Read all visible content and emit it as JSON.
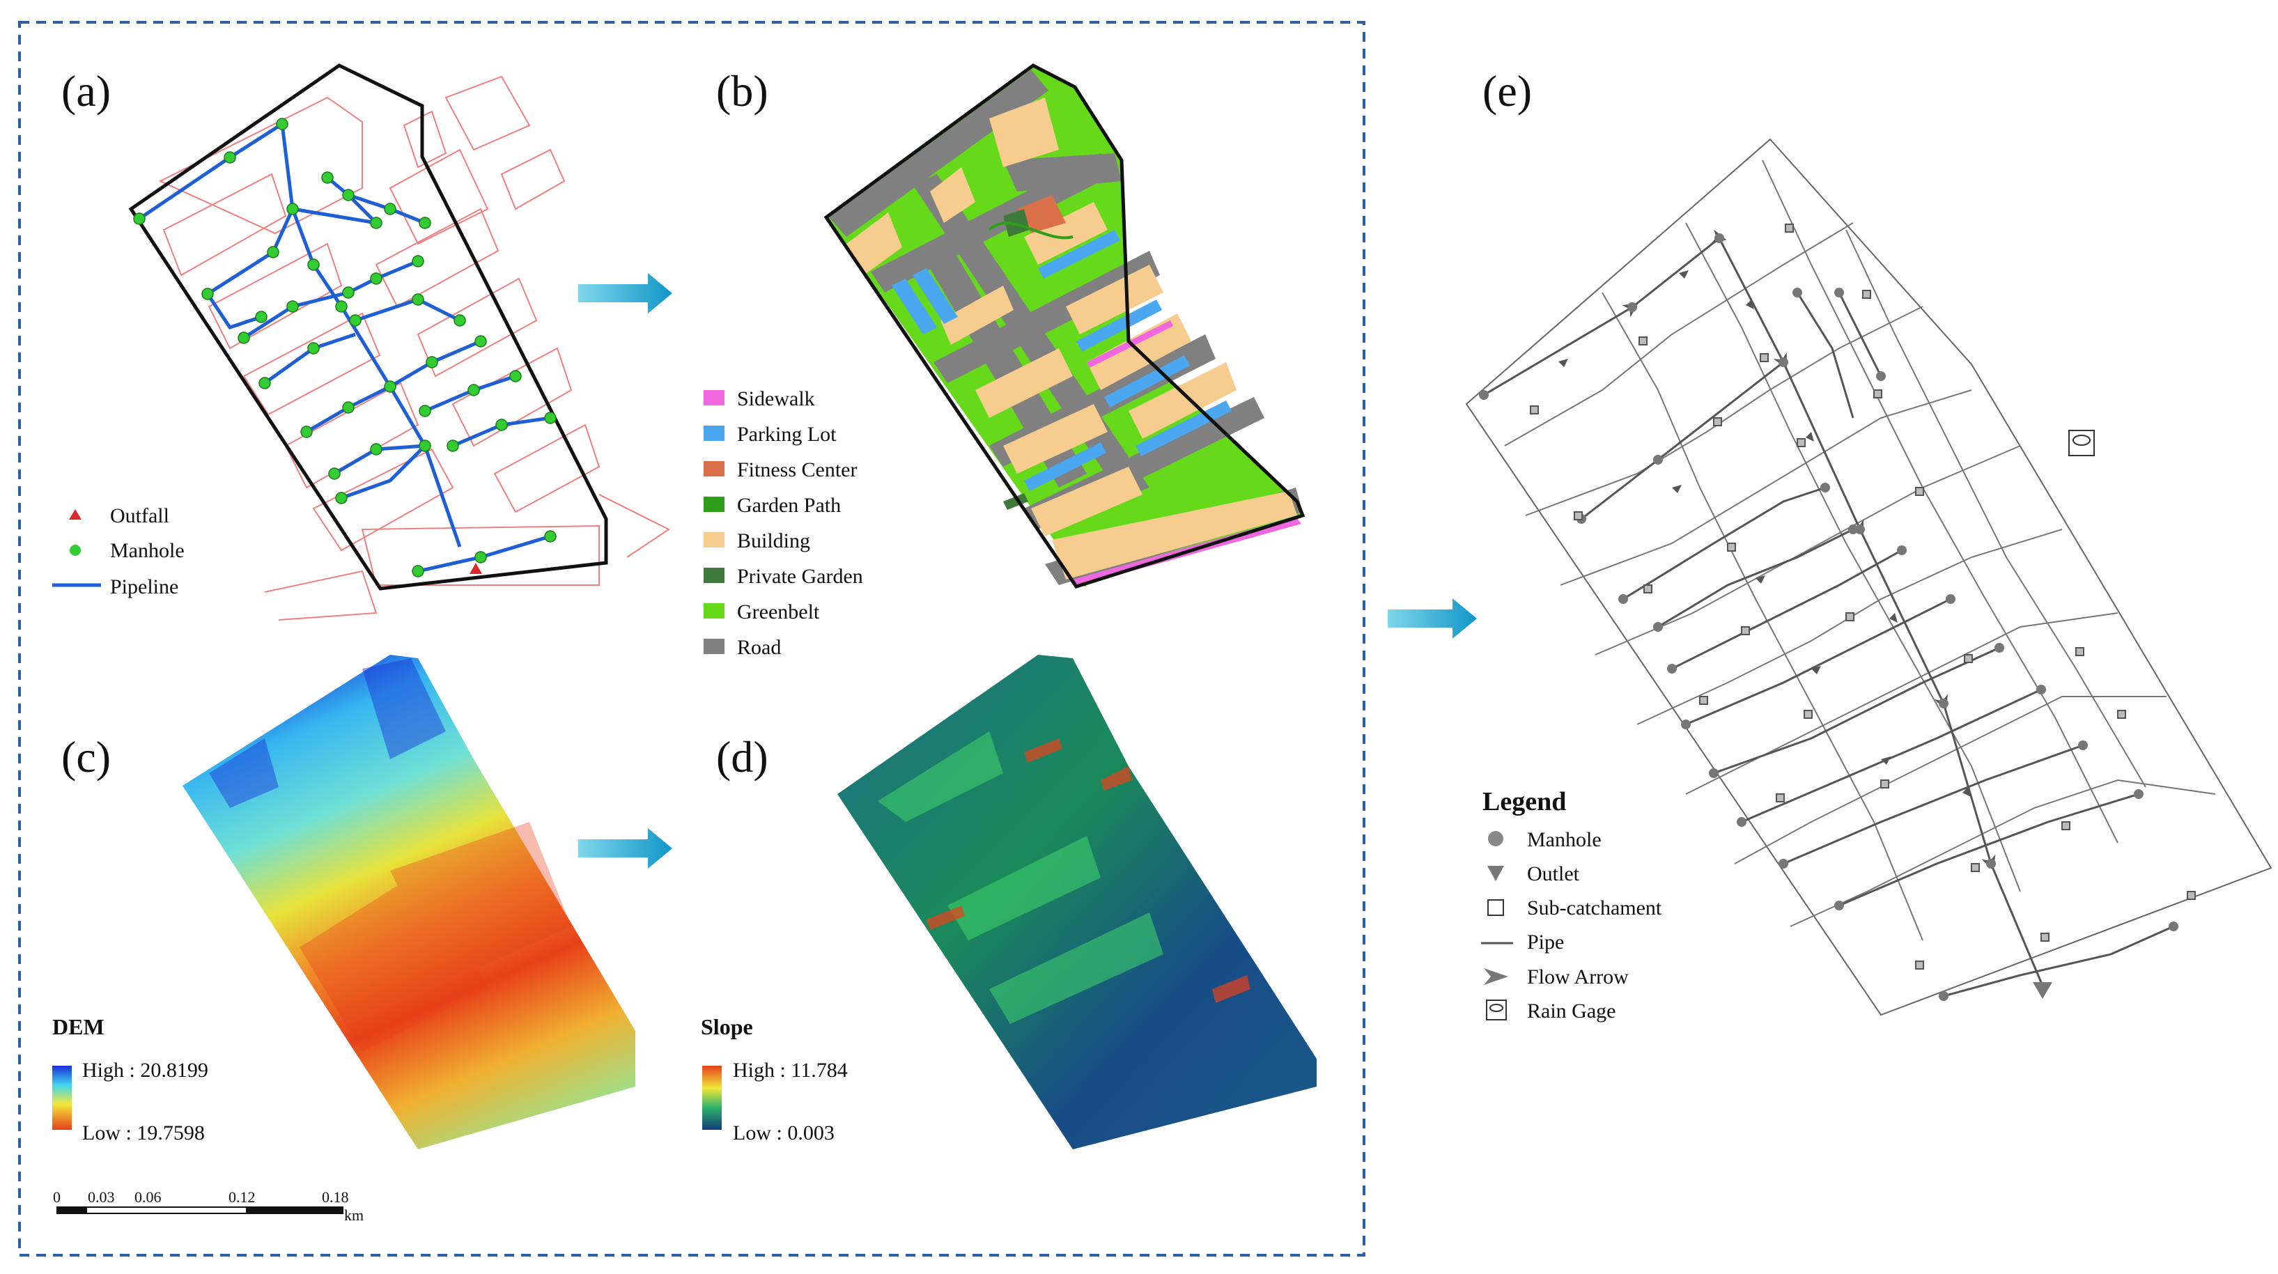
{
  "panels": {
    "a": {
      "label": "(a)",
      "legend": {
        "outfall": "Outfall",
        "manhole": "Manhole",
        "pipeline": "Pipeline"
      },
      "colors": {
        "outfall": "#d92b2b",
        "manhole": "#33cc33",
        "pipeline": "#1f5fd6",
        "basemap": "#f08080"
      }
    },
    "b": {
      "label": "(b)",
      "legend": [
        {
          "name": "Sidewalk",
          "color": "#f067e0"
        },
        {
          "name": "Parking Lot",
          "color": "#4aa7f0"
        },
        {
          "name": "Fitness Center",
          "color": "#d9704a"
        },
        {
          "name": "Garden Path",
          "color": "#2f9e1a"
        },
        {
          "name": "Building",
          "color": "#f6cd8e"
        },
        {
          "name": "Private Garden",
          "color": "#3f7a3a"
        },
        {
          "name": "Greenbelt",
          "color": "#66d91a"
        },
        {
          "name": "Road",
          "color": "#808080"
        }
      ]
    },
    "c": {
      "label": "(c)",
      "legend_title": "DEM",
      "high": "High : 20.8199",
      "low": "Low : 19.7598",
      "scalebar": {
        "ticks": [
          "0",
          "0.03",
          "0.06",
          "0.12",
          "0.18"
        ],
        "unit": "km"
      }
    },
    "d": {
      "label": "(d)",
      "legend_title": "Slope",
      "high": "High : 11.784",
      "low": "Low : 0.003"
    },
    "e": {
      "label": "(e)",
      "legend_title": "Legend",
      "legend": [
        "Manhole",
        "Outlet",
        "Sub-catchament",
        "Pipe",
        "Flow Arrow",
        "Rain Gage"
      ]
    }
  },
  "colors": {
    "arrow": "#19a3cf",
    "frame": "#2f5ea8"
  }
}
